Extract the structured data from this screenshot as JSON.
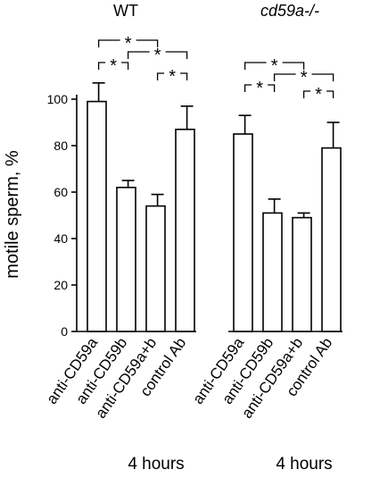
{
  "chart_data": {
    "type": "bar",
    "ylabel": "motile sperm, %",
    "ylim": [
      0,
      100
    ],
    "yticks": [
      0,
      20,
      40,
      60,
      80,
      100
    ],
    "grid": false,
    "categories": [
      "anti-CD59a",
      "anti-CD59b",
      "anti-CD59a+b",
      "control Ab"
    ],
    "groups": [
      {
        "title": "WT",
        "title_italic": false,
        "time_label": "4 hours",
        "values": [
          99,
          62,
          54,
          87
        ],
        "errors": [
          8,
          3,
          5,
          10
        ],
        "significance": [
          {
            "from": 0,
            "to": 1,
            "label": "*"
          },
          {
            "from": 0,
            "to": 2,
            "label": "*"
          },
          {
            "from": 1,
            "to": 3,
            "label": "*"
          },
          {
            "from": 2,
            "to": 3,
            "label": "*"
          }
        ]
      },
      {
        "title": "cd59a-/-",
        "title_italic": true,
        "time_label": "4 hours",
        "values": [
          85,
          51,
          49,
          79
        ],
        "errors": [
          8,
          6,
          2,
          11
        ],
        "significance": [
          {
            "from": 0,
            "to": 1,
            "label": "*"
          },
          {
            "from": 0,
            "to": 2,
            "label": "*"
          },
          {
            "from": 1,
            "to": 3,
            "label": "*"
          },
          {
            "from": 2,
            "to": 3,
            "label": "*"
          }
        ]
      }
    ]
  }
}
